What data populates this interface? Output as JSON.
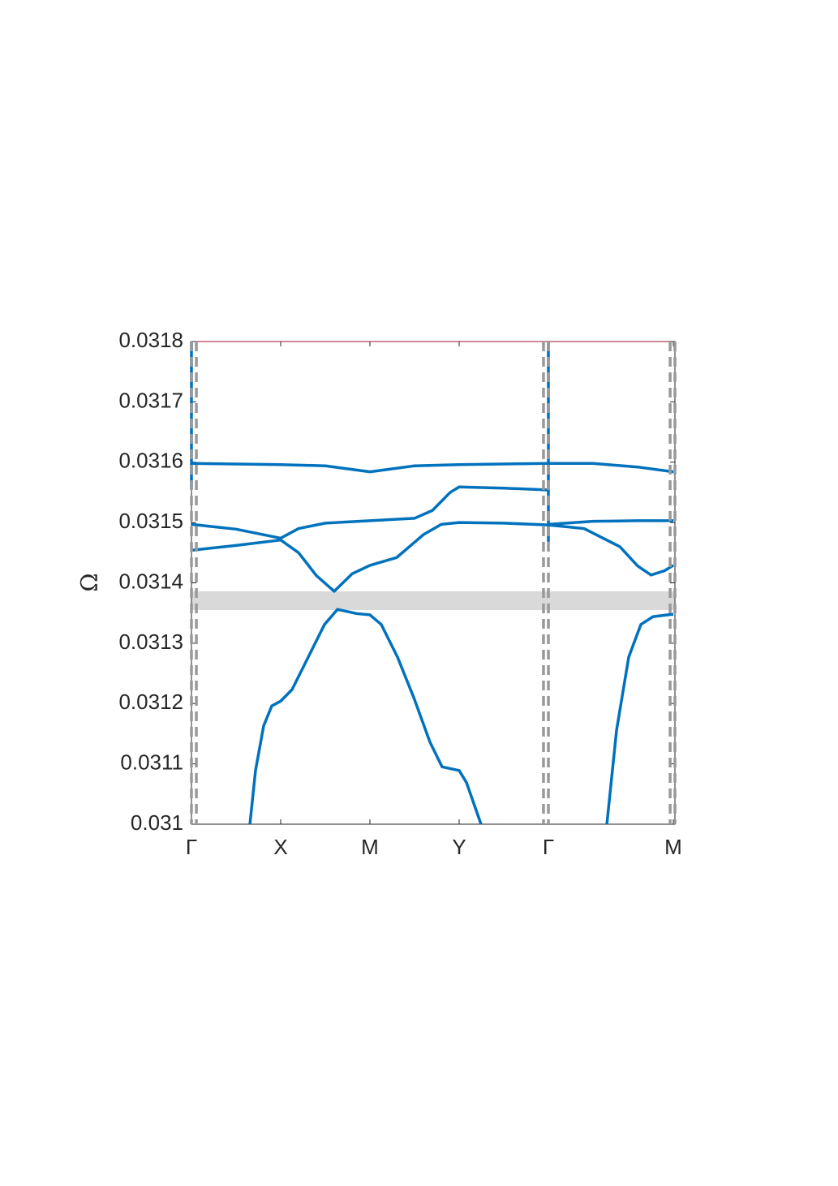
{
  "chart_data": {
    "type": "line",
    "ylabel": "Ω",
    "xlim": [
      0,
      5.418
    ],
    "ylim": [
      0.031,
      0.0318
    ],
    "yticks": [
      0.031,
      0.0311,
      0.0312,
      0.0313,
      0.0314,
      0.0315,
      0.0316,
      0.0317,
      0.0318
    ],
    "xticks": [
      {
        "value": 0,
        "label": "Γ"
      },
      {
        "value": 1,
        "label": "X"
      },
      {
        "value": 2,
        "label": "M"
      },
      {
        "value": 3,
        "label": "Y"
      },
      {
        "value": 4,
        "label": "Γ"
      },
      {
        "value": 5.4,
        "label": "M"
      }
    ],
    "band_gap": [
      0.031355,
      0.031386
    ],
    "band_color": "#d9d9d9",
    "vlines": [
      0,
      0.055,
      3.945,
      4.0,
      5.364,
      5.418
    ],
    "vline_color": "#999999",
    "series": [
      {
        "color": "#0072bd",
        "x": [
          0.655,
          0.718,
          0.809,
          0.9,
          1.0,
          1.127,
          1.309,
          1.491,
          1.636,
          1.855,
          2.0,
          2.127,
          2.309,
          2.491,
          2.673,
          2.809,
          3.0,
          3.082,
          3.245,
          4.0,
          4.655,
          4.764,
          4.9,
          5.036,
          5.173,
          5.4
        ],
        "values": [
          0.031,
          0.031089,
          0.031163,
          0.031196,
          0.031204,
          0.031223,
          0.031277,
          0.031331,
          0.031356,
          0.031349,
          0.031347,
          0.031331,
          0.031277,
          0.03121,
          0.031136,
          0.031095,
          0.031089,
          0.031069,
          0.031,
          null,
          0.031,
          0.031156,
          0.031277,
          0.031331,
          0.031344,
          0.031348
        ]
      },
      {
        "color": "#0072bd",
        "x": [
          0,
          0.5,
          1.0,
          1.2,
          1.4,
          1.6,
          1.8,
          2.0,
          2.3,
          2.6,
          2.8,
          3.0,
          3.5,
          4.0,
          4.0,
          4.0,
          4.4,
          4.8,
          5.0,
          5.15,
          5.3,
          5.4
        ],
        "values": [
          0.031454,
          0.031462,
          0.031471,
          0.03145,
          0.031412,
          0.031386,
          0.031415,
          0.031429,
          0.031442,
          0.03148,
          0.031497,
          0.0315,
          0.031499,
          0.031496,
          null,
          0.031496,
          0.03149,
          0.03146,
          0.031428,
          0.031413,
          0.03142,
          0.031429
        ]
      },
      {
        "color": "#0072bd",
        "x": [
          0,
          0.5,
          1.0,
          1.2,
          1.5,
          2.0,
          2.5,
          2.7,
          2.9,
          3.0,
          3.5,
          4.0,
          4.0,
          4.0,
          4.5,
          5.0,
          5.4
        ],
        "values": [
          0.031497,
          0.031489,
          0.031474,
          0.03149,
          0.031499,
          0.031503,
          0.031507,
          0.03152,
          0.03155,
          0.031559,
          0.031557,
          0.031554,
          null,
          0.031497,
          0.031502,
          0.031503,
          0.031503
        ]
      },
      {
        "color": "#0072bd",
        "x": [
          0,
          1.0,
          1.5,
          2.0,
          2.5,
          3.0,
          4.0,
          4.5,
          5.0,
          5.4
        ],
        "values": [
          0.031598,
          0.031596,
          0.031594,
          0.031584,
          0.031594,
          0.031596,
          0.031598,
          0.031598,
          0.031592,
          0.031584
        ]
      },
      {
        "color": "#0072bd",
        "x": [
          0,
          0,
          4,
          4,
          4
        ],
        "values": [
          0.031556,
          0.0318,
          null,
          0.031468,
          0.0318
        ]
      }
    ]
  }
}
